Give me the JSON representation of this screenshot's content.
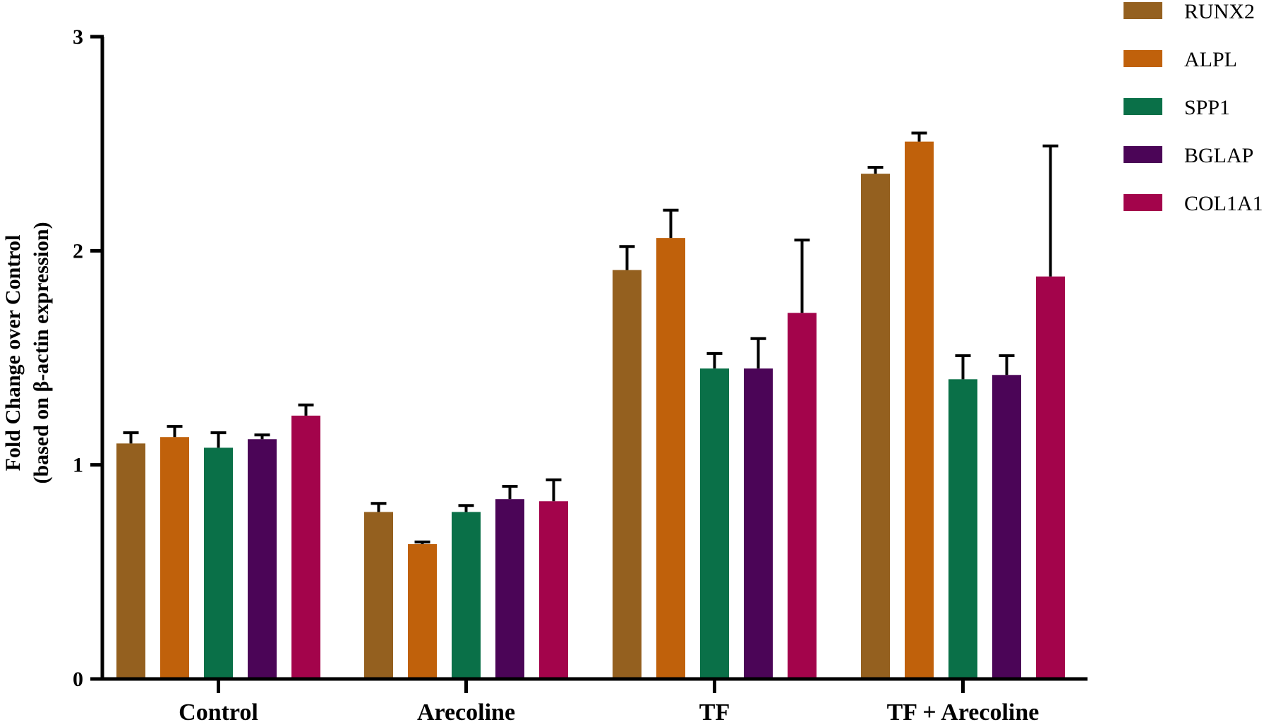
{
  "chart_data": {
    "type": "bar",
    "categories": [
      "Control",
      "Arecoline",
      "TF",
      "TF + Arecoline"
    ],
    "ylabel_line1": "Fold Change over Control",
    "ylabel_line2": "(based on β-actin expression)",
    "ylim": [
      0,
      3
    ],
    "yticks": [
      0,
      1,
      2,
      3
    ],
    "legend_position": "top-right",
    "series": [
      {
        "name": "RUNX2",
        "color": "#94601f",
        "values": [
          1.1,
          0.78,
          1.91,
          2.36
        ],
        "errors": [
          0.05,
          0.04,
          0.11,
          0.03
        ]
      },
      {
        "name": "ALPL",
        "color": "#c0610b",
        "values": [
          1.13,
          0.63,
          2.06,
          2.51
        ],
        "errors": [
          0.05,
          0.01,
          0.13,
          0.04
        ]
      },
      {
        "name": "SPP1",
        "color": "#0a7048",
        "values": [
          1.08,
          0.78,
          1.45,
          1.4
        ],
        "errors": [
          0.07,
          0.03,
          0.07,
          0.11
        ]
      },
      {
        "name": "BGLAP",
        "color": "#4b0557",
        "values": [
          1.12,
          0.84,
          1.45,
          1.42
        ],
        "errors": [
          0.02,
          0.06,
          0.14,
          0.09
        ]
      },
      {
        "name": "COL1A1",
        "color": "#a3044b",
        "values": [
          1.23,
          0.83,
          1.71,
          1.88
        ],
        "errors": [
          0.05,
          0.1,
          0.34,
          0.61
        ]
      }
    ]
  }
}
